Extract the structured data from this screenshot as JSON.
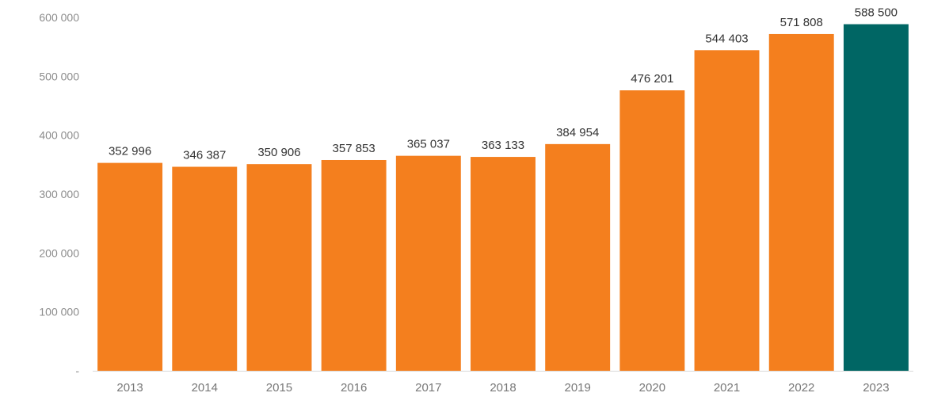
{
  "chart_data": {
    "type": "bar",
    "categories": [
      "2013",
      "2014",
      "2015",
      "2016",
      "2017",
      "2018",
      "2019",
      "2020",
      "2021",
      "2022",
      "2023"
    ],
    "values": [
      352996,
      346387,
      350906,
      357853,
      365037,
      363133,
      384954,
      476201,
      544403,
      571808,
      588500
    ],
    "data_labels": [
      "352 996",
      "346 387",
      "350 906",
      "357 853",
      "365 037",
      "363 133",
      "384 954",
      "476 201",
      "544 403",
      "571 808",
      "588 500"
    ],
    "y_ticks": [
      {
        "value": 0,
        "label": "-"
      },
      {
        "value": 100000,
        "label": "100 000"
      },
      {
        "value": 200000,
        "label": "200 000"
      },
      {
        "value": 300000,
        "label": "300 000"
      },
      {
        "value": 400000,
        "label": "400 000"
      },
      {
        "value": 500000,
        "label": "500 000"
      },
      {
        "value": 600000,
        "label": "600 000"
      }
    ],
    "ylim": [
      0,
      600000
    ],
    "title": "",
    "xlabel": "",
    "ylabel": "",
    "grid": false,
    "colors": {
      "default_bar": "#f47f1e",
      "highlight_bar": "#006664",
      "axis_line": "#d9d9d9"
    },
    "highlight_index": 10
  }
}
